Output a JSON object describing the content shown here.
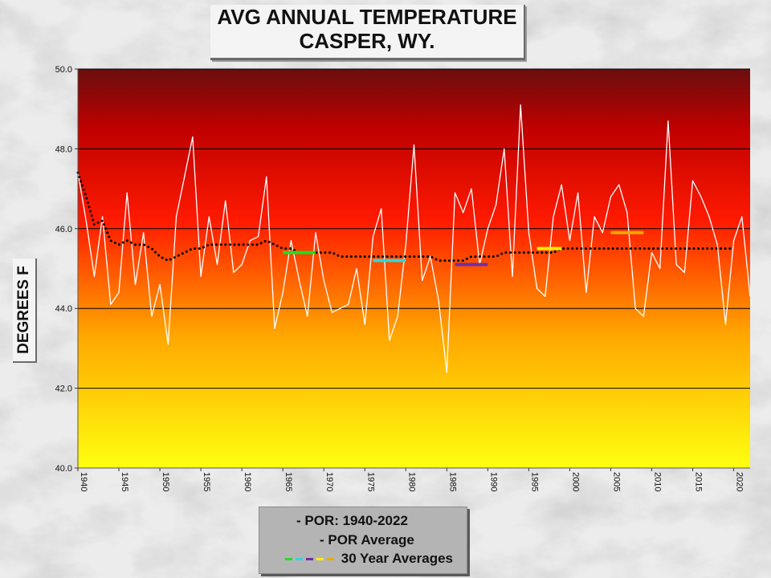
{
  "title": {
    "line1": "AVG ANNUAL TEMPERATURE",
    "line2": "CASPER, WY."
  },
  "chart_data": {
    "type": "line",
    "ylabel": "DEGREES F",
    "ylim": [
      40.0,
      50.0
    ],
    "xlim": [
      1940,
      2022
    ],
    "yticks": [
      "40.0",
      "42.0",
      "44.0",
      "46.0",
      "48.0",
      "50.0"
    ],
    "xticks": [
      "1940",
      "1945",
      "1950",
      "1955",
      "1960",
      "1965",
      "1970",
      "1975",
      "1980",
      "1985",
      "1990",
      "1995",
      "2000",
      "2005",
      "2010",
      "2015",
      "2020"
    ],
    "grid": "horizontal",
    "background": "vertical gradient yellow (bottom) to dark red (top)",
    "series": [
      {
        "name": "POR: 1940-2022",
        "color": "#ffffff",
        "style": "solid",
        "x": [
          1940,
          1941,
          1942,
          1943,
          1944,
          1945,
          1946,
          1947,
          1948,
          1949,
          1950,
          1951,
          1952,
          1953,
          1954,
          1955,
          1956,
          1957,
          1958,
          1959,
          1960,
          1961,
          1962,
          1963,
          1964,
          1965,
          1966,
          1967,
          1968,
          1969,
          1970,
          1971,
          1972,
          1973,
          1974,
          1975,
          1976,
          1977,
          1978,
          1979,
          1980,
          1981,
          1982,
          1983,
          1984,
          1985,
          1986,
          1987,
          1988,
          1989,
          1990,
          1991,
          1992,
          1993,
          1994,
          1995,
          1996,
          1997,
          1998,
          1999,
          2000,
          2001,
          2002,
          2003,
          2004,
          2005,
          2006,
          2007,
          2008,
          2009,
          2010,
          2011,
          2012,
          2013,
          2014,
          2015,
          2016,
          2017,
          2018,
          2019,
          2020,
          2021,
          2022
        ],
        "values": [
          47.4,
          46.2,
          44.8,
          46.3,
          44.1,
          44.4,
          46.9,
          44.6,
          45.9,
          43.8,
          44.6,
          43.1,
          46.3,
          47.3,
          48.3,
          44.8,
          46.3,
          45.1,
          46.7,
          44.9,
          45.1,
          45.7,
          45.8,
          47.3,
          43.5,
          44.4,
          45.7,
          44.7,
          43.8,
          45.9,
          44.7,
          43.9,
          44.0,
          44.1,
          45.0,
          43.6,
          45.8,
          46.5,
          43.2,
          43.8,
          45.6,
          48.1,
          44.7,
          45.3,
          44.2,
          42.4,
          46.9,
          46.4,
          47.0,
          45.1,
          46.0,
          46.6,
          48.0,
          44.8,
          49.1,
          45.9,
          44.5,
          44.3,
          46.3,
          47.1,
          45.7,
          46.9,
          44.4,
          46.3,
          45.9,
          46.8,
          47.1,
          46.4,
          44.0,
          43.8,
          45.4,
          45.0,
          48.7,
          45.1,
          44.9,
          47.2,
          46.8,
          46.3,
          45.6,
          43.6,
          45.7,
          46.3,
          44.3
        ]
      },
      {
        "name": "POR Average",
        "color": "#000000",
        "style": "dotted",
        "x": [
          1940,
          1941,
          1942,
          1943,
          1944,
          1945,
          1946,
          1947,
          1948,
          1949,
          1950,
          1951,
          1952,
          1953,
          1954,
          1955,
          1956,
          1957,
          1958,
          1959,
          1960,
          1961,
          1962,
          1963,
          1964,
          1965,
          1966,
          1967,
          1968,
          1969,
          1970,
          1971,
          1972,
          1973,
          1974,
          1975,
          1976,
          1977,
          1978,
          1979,
          1980,
          1981,
          1982,
          1983,
          1984,
          1985,
          1986,
          1987,
          1988,
          1989,
          1990,
          1991,
          1992,
          1993,
          1994,
          1995,
          1996,
          1997,
          1998,
          1999,
          2000,
          2001,
          2002,
          2003,
          2004,
          2005,
          2006,
          2007,
          2008,
          2009,
          2010,
          2011,
          2012,
          2013,
          2014,
          2015,
          2016,
          2017,
          2018,
          2019,
          2020
        ],
        "values": [
          47.4,
          46.8,
          46.1,
          46.2,
          45.7,
          45.6,
          45.7,
          45.6,
          45.6,
          45.5,
          45.3,
          45.2,
          45.3,
          45.4,
          45.5,
          45.5,
          45.6,
          45.6,
          45.6,
          45.6,
          45.6,
          45.6,
          45.6,
          45.7,
          45.6,
          45.5,
          45.5,
          45.4,
          45.4,
          45.4,
          45.4,
          45.4,
          45.3,
          45.3,
          45.3,
          45.3,
          45.3,
          45.3,
          45.3,
          45.3,
          45.3,
          45.3,
          45.3,
          45.3,
          45.2,
          45.2,
          45.2,
          45.2,
          45.3,
          45.3,
          45.3,
          45.3,
          45.4,
          45.4,
          45.4,
          45.4,
          45.4,
          45.4,
          45.4,
          45.5,
          45.5,
          45.5,
          45.5,
          45.5,
          45.5,
          45.5,
          45.5,
          45.5,
          45.5,
          45.5,
          45.5,
          45.5,
          45.5,
          45.5,
          45.5,
          45.5,
          45.5,
          45.5,
          45.5,
          45.5,
          45.5
        ]
      },
      {
        "name": "30 Year Averages",
        "style": "segments",
        "segments": [
          {
            "x": [
              1965,
              1969
            ],
            "value": 45.4,
            "color": "#22dd22"
          },
          {
            "x": [
              1976,
              1980
            ],
            "value": 45.2,
            "color": "#33d6d6"
          },
          {
            "x": [
              1986,
              1990
            ],
            "value": 45.1,
            "color": "#7030a0"
          },
          {
            "x": [
              1996,
              1999
            ],
            "value": 45.5,
            "color": "#ffee00"
          },
          {
            "x": [
              2005,
              2009
            ],
            "value": 45.9,
            "color": "#f2a900"
          }
        ]
      }
    ]
  },
  "legend": {
    "items": [
      {
        "label": "- POR: 1940-2022"
      },
      {
        "label": "- POR Average"
      },
      {
        "label": "30 Year Averages",
        "colors": [
          "#22dd22",
          "#33d6d6",
          "#7030a0",
          "#ffee00",
          "#f2a900"
        ]
      }
    ]
  }
}
